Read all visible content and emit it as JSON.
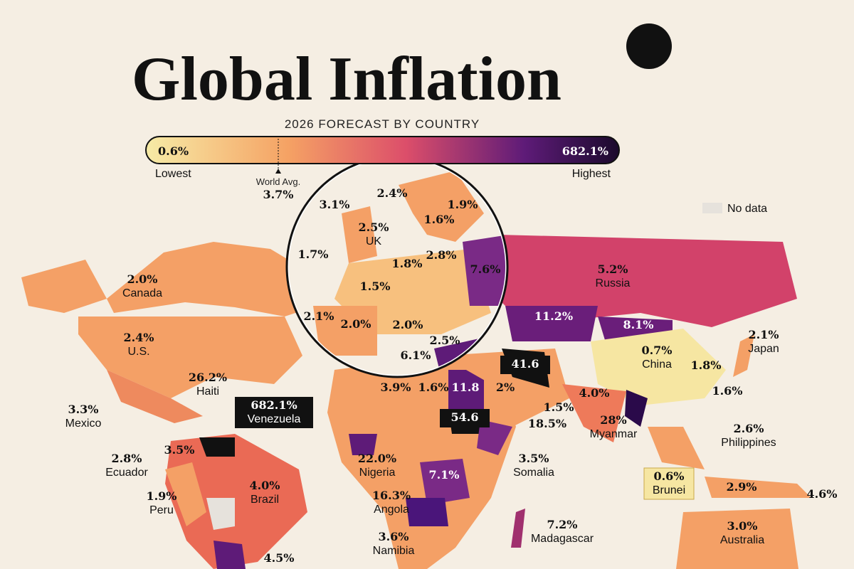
{
  "header": {
    "title": "Global Inflation",
    "subtitle": "2026 FORECAST BY COUNTRY"
  },
  "scale": {
    "low_value": "0.6%",
    "low_label": "Lowest",
    "high_value": "682.1%",
    "high_label": "Highest",
    "average_label": "World Avg.",
    "average_value": "3.7%",
    "no_data": "No data"
  },
  "labels": [
    {
      "value": "3.1%"
    },
    {
      "value": "2.4%"
    },
    {
      "value": "1.9%"
    },
    {
      "value": "2.5%",
      "name": "UK"
    },
    {
      "value": "1.6%"
    },
    {
      "value": "1.7%"
    },
    {
      "value": "2.8%"
    },
    {
      "value": "1.8%"
    },
    {
      "value": "7.6%"
    },
    {
      "value": "1.5%"
    },
    {
      "value": "2.1%"
    },
    {
      "value": "2.0%"
    },
    {
      "value": "2.0%"
    },
    {
      "value": "2.5%"
    },
    {
      "value": "6.1%"
    },
    {
      "value": "2.0%",
      "name": "Canada"
    },
    {
      "value": "2.4%",
      "name": "U.S."
    },
    {
      "value": "26.2%",
      "name": "Haiti"
    },
    {
      "value": "3.3%",
      "name": "Mexico"
    },
    {
      "value": "682.1%",
      "name": "Venezuela"
    },
    {
      "value": "2.8%",
      "name": "Ecuador"
    },
    {
      "value": "3.5%"
    },
    {
      "value": "1.9%",
      "name": "Peru"
    },
    {
      "value": "4.0%",
      "name": "Brazil"
    },
    {
      "value": "4.5%"
    },
    {
      "value": "5.2%",
      "name": "Russia"
    },
    {
      "value": "11.2%"
    },
    {
      "value": "8.1%"
    },
    {
      "value": "0.7%",
      "name": "China"
    },
    {
      "value": "2.1%",
      "name": "Japan"
    },
    {
      "value": "1.8%"
    },
    {
      "value": "1.6%"
    },
    {
      "value": "41.6"
    },
    {
      "value": "3.9%"
    },
    {
      "value": "1.6%"
    },
    {
      "value": "11.8"
    },
    {
      "value": "2%"
    },
    {
      "value": "54.6"
    },
    {
      "value": "1.5%"
    },
    {
      "value": "18.5%"
    },
    {
      "value": "4.0%"
    },
    {
      "value": "28%",
      "name": "Myanmar"
    },
    {
      "value": "2.6%",
      "name": "Philippines"
    },
    {
      "value": "22.0%",
      "name": "Nigeria"
    },
    {
      "value": "3.5%",
      "name": "Somalia"
    },
    {
      "value": "7.1%"
    },
    {
      "value": "16.3%",
      "name": "Angola"
    },
    {
      "value": "0.6%",
      "name": "Brunei"
    },
    {
      "value": "2.9%"
    },
    {
      "value": "4.6%"
    },
    {
      "value": "7.2%",
      "name": "Madagascar"
    },
    {
      "value": "3.6%",
      "name": "Namibia"
    },
    {
      "value": "3.0%",
      "name": "Australia"
    }
  ]
}
